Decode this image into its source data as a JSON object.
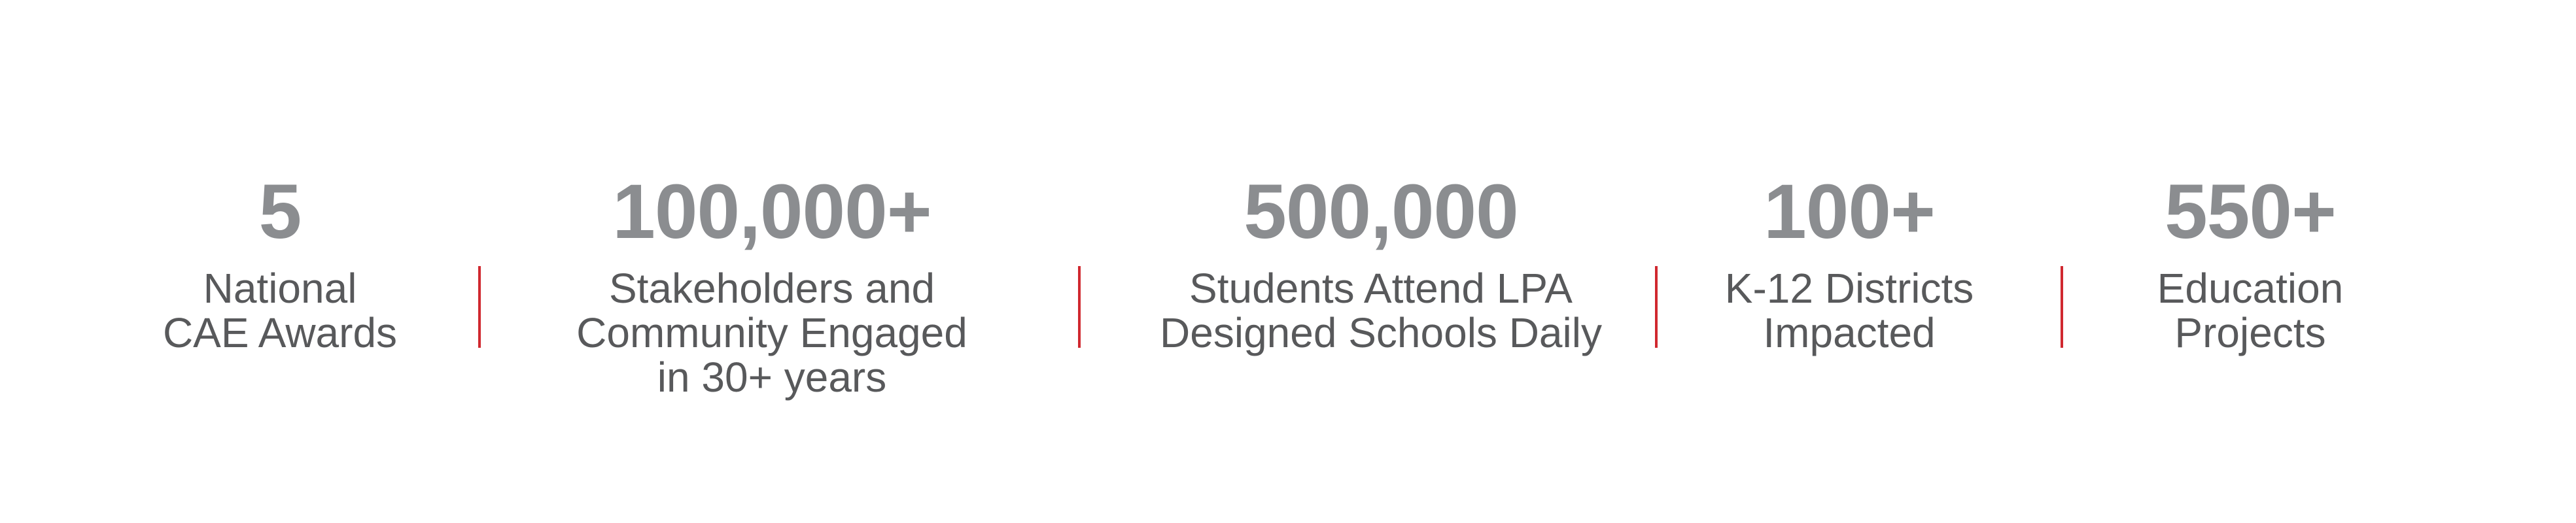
{
  "theme": {
    "background": "#ffffff",
    "value_color": "#8b8d90",
    "label_color": "#58595b",
    "divider_color": "#d0282f"
  },
  "stats": {
    "items": [
      {
        "value": "5",
        "label": "National\nCAE Awards"
      },
      {
        "value": "100,000+",
        "label": "Stakeholders and\nCommunity Engaged\nin 30+ years"
      },
      {
        "value": "500,000",
        "label": "Students Attend LPA\nDesigned Schools Daily"
      },
      {
        "value": "100+",
        "label": "K-12 Districts\nImpacted"
      },
      {
        "value": "550+",
        "label": "Education\nProjects"
      }
    ]
  }
}
